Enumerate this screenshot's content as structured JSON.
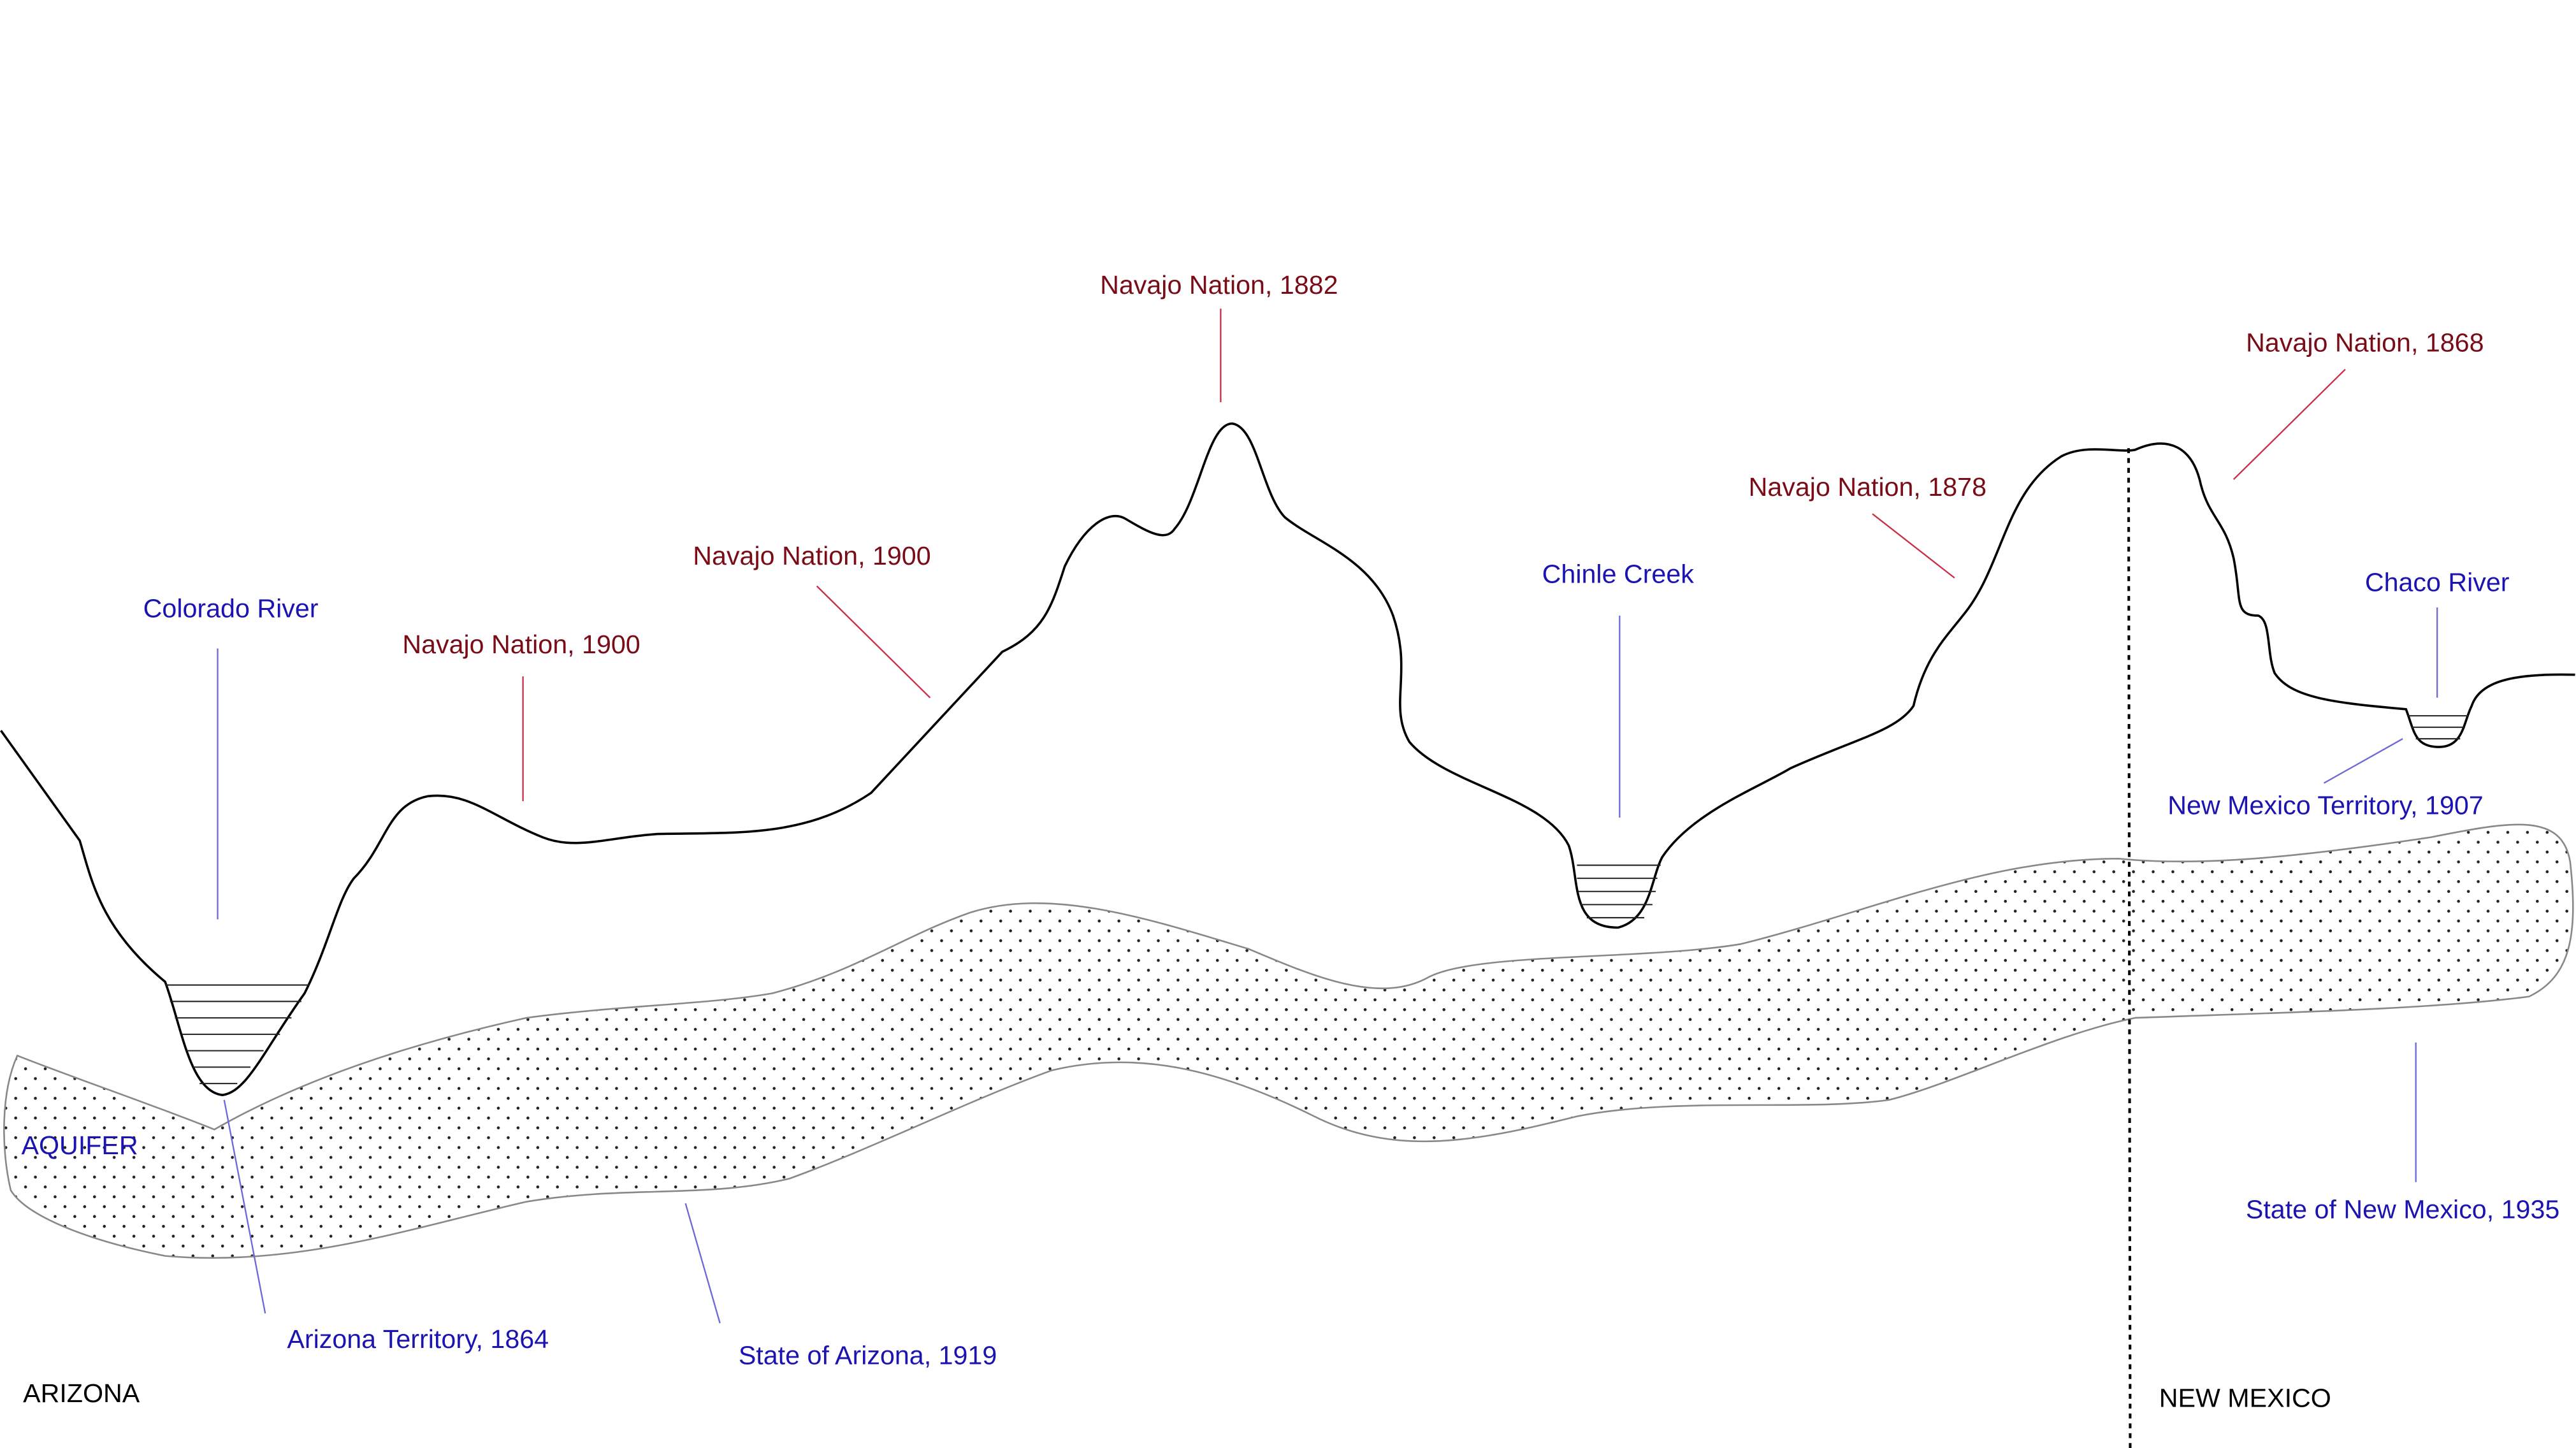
{
  "annotations": [
    {
      "text": "Colorado River"
    },
    {
      "text": "Navajo Nation, 1900"
    },
    {
      "text": "Navajo Nation, 1900"
    },
    {
      "text": "Navajo Nation, 1882"
    },
    {
      "text": "Chinle Creek"
    },
    {
      "text": "Navajo Nation, 1878"
    },
    {
      "text": "Navajo Nation, 1868"
    },
    {
      "text": "Chaco River"
    },
    {
      "text": "New Mexico Territory, 1907"
    },
    {
      "text": "State of New Mexico, 1935"
    },
    {
      "text": "Arizona Territory, 1864"
    },
    {
      "text": "State of Arizona, 1919"
    }
  ],
  "aquifer": "AQUIFER",
  "regions": [
    "ARIZONA",
    "NEW MEXICO"
  ]
}
